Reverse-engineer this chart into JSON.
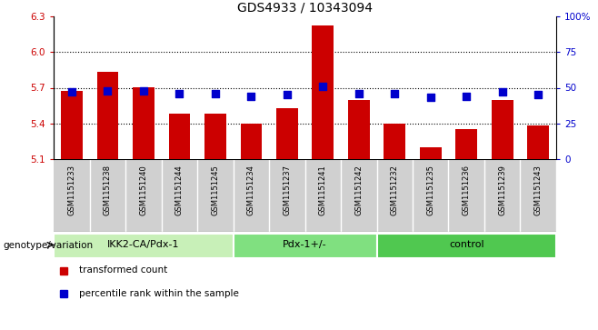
{
  "title": "GDS4933 / 10343094",
  "samples": [
    "GSM1151233",
    "GSM1151238",
    "GSM1151240",
    "GSM1151244",
    "GSM1151245",
    "GSM1151234",
    "GSM1151237",
    "GSM1151241",
    "GSM1151242",
    "GSM1151232",
    "GSM1151235",
    "GSM1151236",
    "GSM1151239",
    "GSM1151243"
  ],
  "transformed_count": [
    5.67,
    5.83,
    5.7,
    5.48,
    5.48,
    5.4,
    5.53,
    6.22,
    5.6,
    5.4,
    5.2,
    5.35,
    5.6,
    5.38
  ],
  "percentile_rank": [
    47,
    48,
    48,
    46,
    46,
    44,
    45,
    51,
    46,
    46,
    43,
    44,
    47,
    45
  ],
  "groups": [
    {
      "label": "IKK2-CA/Pdx-1",
      "start": 0,
      "end": 5,
      "color": "#c8f0b8"
    },
    {
      "label": "Pdx-1+/-",
      "start": 5,
      "end": 9,
      "color": "#80e080"
    },
    {
      "label": "control",
      "start": 9,
      "end": 14,
      "color": "#50c850"
    }
  ],
  "bar_color": "#cc0000",
  "dot_color": "#0000cc",
  "ylim_left": [
    5.1,
    6.3
  ],
  "ylim_right": [
    0,
    100
  ],
  "yticks_left": [
    5.1,
    5.4,
    5.7,
    6.0,
    6.3
  ],
  "yticks_right": [
    0,
    25,
    50,
    75,
    100
  ],
  "ytick_labels_right": [
    "0",
    "25",
    "50",
    "75",
    "100%"
  ],
  "hlines": [
    5.4,
    5.7,
    6.0
  ],
  "bar_width": 0.6,
  "dot_size": 40,
  "xlabel_group": "genotype/variation",
  "legend_bar": "transformed count",
  "legend_dot": "percentile rank within the sample",
  "plot_bg": "#ffffff",
  "xlabel_bg": "#d0d0d0",
  "title_fontsize": 10,
  "tick_fontsize": 7.5,
  "sample_fontsize": 6.0,
  "label_fontsize": 8
}
